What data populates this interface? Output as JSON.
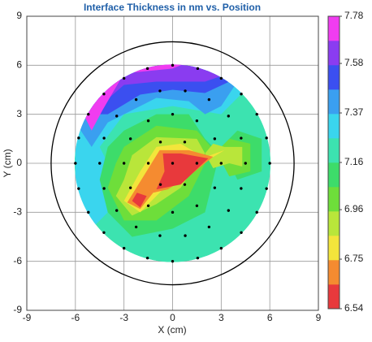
{
  "chart_data": {
    "type": "contour",
    "title": "Interface Thickness in nm vs. Position",
    "x_label": "X (cm)",
    "y_label": "Y (cm)",
    "xlim": [
      -9,
      9
    ],
    "ylim": [
      -9,
      9
    ],
    "xticks": [
      -9,
      -6,
      -3,
      0,
      3,
      6,
      9
    ],
    "yticks": [
      -9,
      -6,
      -3,
      0,
      3,
      6,
      9
    ],
    "grid": true,
    "points": {
      "color": "#000000",
      "x": [
        6,
        5.8,
        5.2,
        4.24,
        3,
        1.55,
        0,
        -1.55,
        -3,
        -4.24,
        -5.2,
        -5.8,
        -6,
        -5.8,
        -5.2,
        -4.24,
        -3,
        -1.55,
        0,
        1.55,
        3,
        4.24,
        5.2,
        5.8,
        4.5,
        4.23,
        3.45,
        2.25,
        0.78,
        -0.78,
        -2.25,
        -3.45,
        -4.23,
        -4.5,
        -4.23,
        -3.45,
        -2.25,
        -0.78,
        0.78,
        2.25,
        3.45,
        4.23,
        3,
        2.6,
        1.5,
        0,
        -1.5,
        -2.6,
        -3,
        -2.6,
        -1.5,
        0,
        1.5,
        2.6,
        1.5,
        0.75,
        -0.75,
        -1.5,
        -0.75,
        0.75,
        0
      ],
      "y": [
        0,
        1.55,
        3,
        4.24,
        5.2,
        5.8,
        6,
        5.8,
        5.2,
        4.24,
        3,
        1.55,
        0,
        -1.55,
        -3,
        -4.24,
        -5.2,
        -5.8,
        -6,
        -5.8,
        -5.2,
        -4.24,
        -3,
        -1.55,
        0,
        1.54,
        2.89,
        3.9,
        4.43,
        4.43,
        3.9,
        2.89,
        1.54,
        0,
        -1.54,
        -2.89,
        -3.9,
        -4.43,
        -4.43,
        -3.9,
        -2.89,
        -1.54,
        0,
        1.5,
        2.6,
        3,
        2.6,
        1.5,
        0,
        -1.5,
        -2.6,
        -3,
        -2.6,
        -1.5,
        0,
        1.3,
        1.3,
        0,
        -1.3,
        -1.3,
        0
      ]
    },
    "colorbar": {
      "clim": [
        6.54,
        7.78
      ],
      "cticks": [
        6.54,
        6.75,
        6.96,
        7.16,
        7.37,
        7.58,
        7.78
      ],
      "colors": [
        "#e8393c",
        "#f58b30",
        "#f3e53b",
        "#b9e63a",
        "#6ede3a",
        "#3ddc6a",
        "#3ce3b0",
        "#3ad5ee",
        "#3a9ff0",
        "#3b4ff0",
        "#8a3cf0",
        "#f03cf0"
      ]
    }
  }
}
